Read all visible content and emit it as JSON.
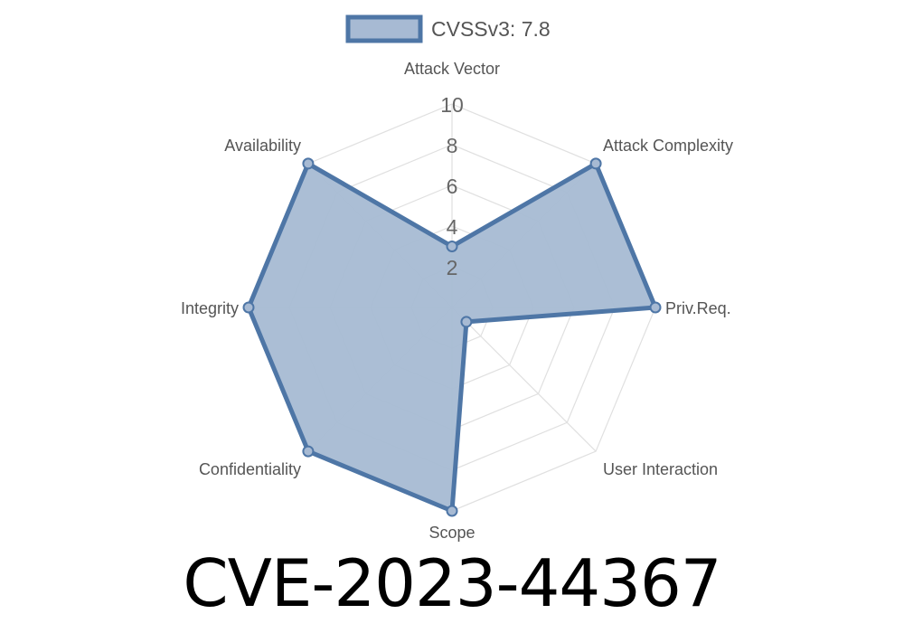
{
  "chart_data": {
    "type": "radar",
    "title": "CVE-2023-44367",
    "axes": [
      "Attack Vector",
      "Attack Complexity",
      "Priv.Req.",
      "User Interaction",
      "Scope",
      "Confidentiality",
      "Integrity",
      "Availability"
    ],
    "series": [
      {
        "name": "CVSSv3: 7.8",
        "values": [
          3.0,
          10,
          10,
          1.0,
          10,
          10,
          10,
          10
        ]
      }
    ],
    "rlim": [
      0,
      10
    ],
    "ticks": [
      "2",
      "4",
      "6",
      "8",
      "10"
    ],
    "legend": "top",
    "grid": true,
    "colors": {
      "stroke": "#4e76a6",
      "fill": "#a7bad3",
      "grid": "#e0e0e0"
    }
  }
}
